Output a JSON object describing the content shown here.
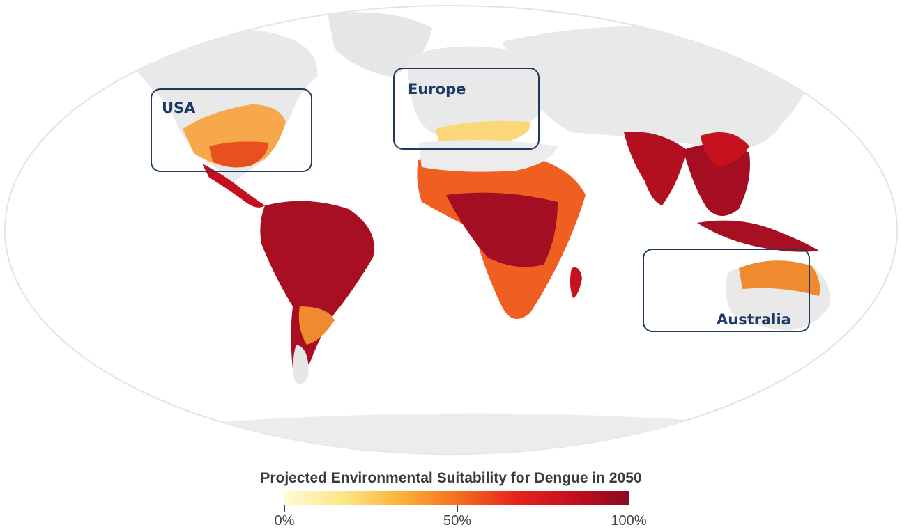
{
  "legend": {
    "title": "Projected Environmental Suitability for Dengue in 2050",
    "ticks": [
      "0%",
      "50%",
      "100%"
    ],
    "colors": [
      "#fffbd6",
      "#fde78a",
      "#fdb33c",
      "#f4701f",
      "#e8251c",
      "#c4101e",
      "#8a0a24"
    ]
  },
  "regions": [
    {
      "label": "USA"
    },
    {
      "label": "Europe"
    },
    {
      "label": "Australia"
    }
  ],
  "colors": {
    "land_base": "#e9e9ea",
    "ocean_outline": "#e3e3e3",
    "box_border": "#1f3a5a",
    "label_text": "#1a3a63"
  }
}
